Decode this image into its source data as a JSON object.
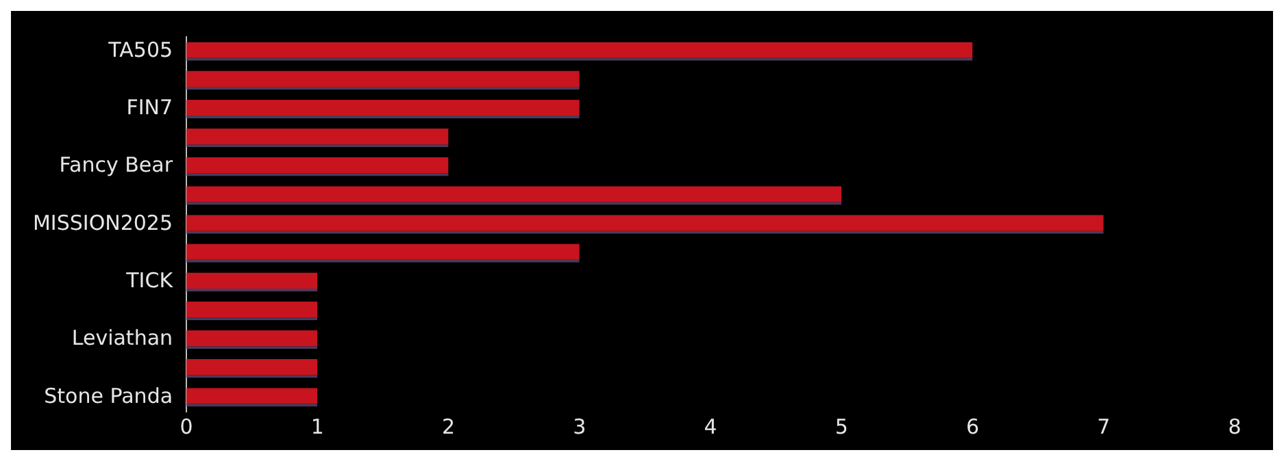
{
  "chart_data": {
    "type": "bar",
    "orientation": "horizontal",
    "categories": [
      "TA505",
      null,
      "FIN7",
      null,
      "Fancy Bear",
      null,
      "MISSION2025",
      null,
      "TICK",
      null,
      "Leviathan",
      null,
      "Stone Panda"
    ],
    "values": [
      6,
      3,
      3,
      2,
      2,
      5,
      7,
      3,
      1,
      1,
      1,
      1,
      1
    ],
    "color": "#c8141e",
    "xlim": [
      0,
      8
    ],
    "xticks": [
      0,
      1,
      2,
      3,
      4,
      5,
      6,
      7,
      8
    ],
    "grid": false,
    "legend": false
  }
}
